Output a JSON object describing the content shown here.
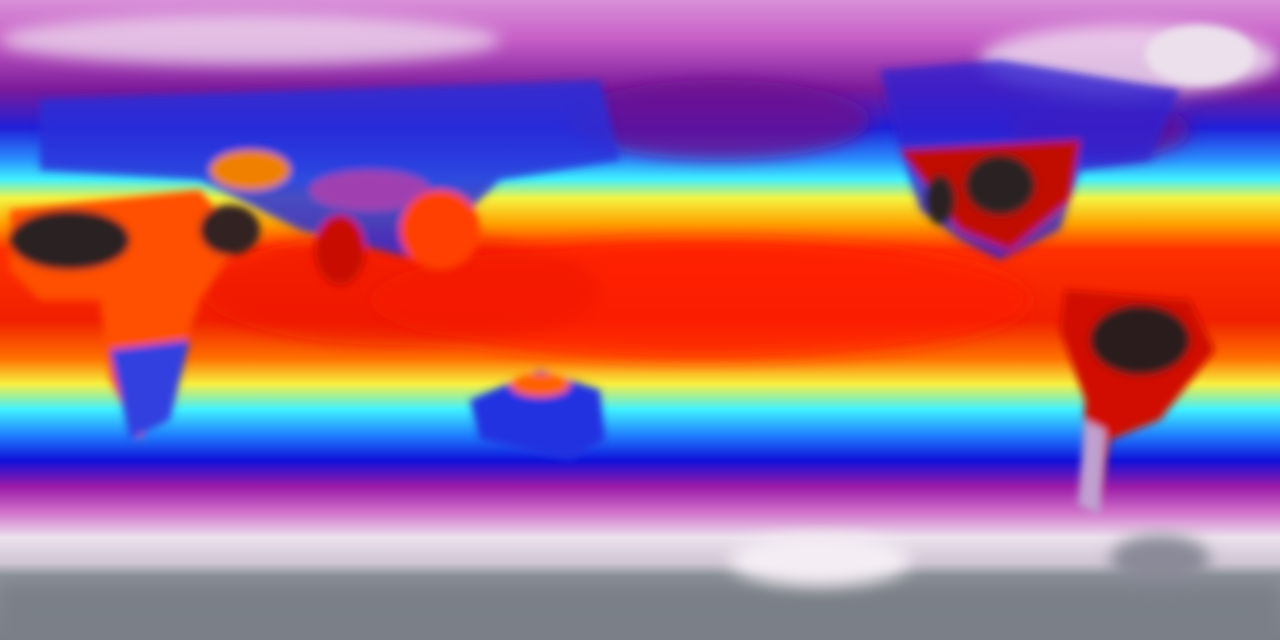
{
  "map": {
    "projection": "equirectangular",
    "coverage": "global",
    "colormap": [
      "#7d8590",
      "#e8e0ea",
      "#d070c8",
      "#8a1a9a",
      "#1010e0",
      "#2080ff",
      "#40f0ff",
      "#f8f850",
      "#ffb000",
      "#ff3000",
      "#c00000",
      "#202020"
    ],
    "band_colors": {
      "polar_ice": "#8a9098",
      "polar_cloud": "#ece4ee",
      "high_lat": "#b030b0",
      "mid_lat": "#1818e8",
      "subtropic_cool": "#40e8ff",
      "subtropic_warm": "#f4f040",
      "tropics": "#ff2a00",
      "hot_land": "#2a2020"
    }
  }
}
